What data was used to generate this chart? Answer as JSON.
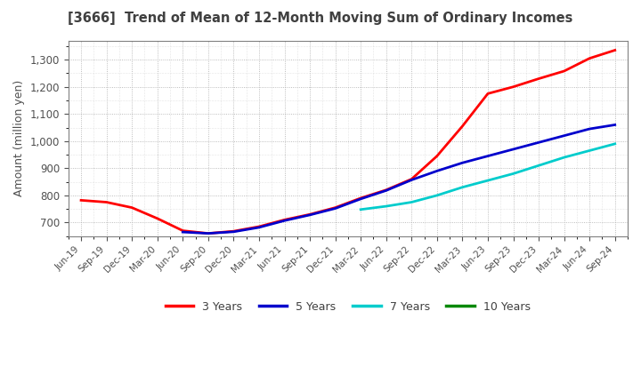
{
  "title": "[3666]  Trend of Mean of 12-Month Moving Sum of Ordinary Incomes",
  "ylabel": "Amount (million yen)",
  "ylim": [
    650,
    1370
  ],
  "yticks": [
    700,
    800,
    900,
    1000,
    1100,
    1200,
    1300
  ],
  "background_color": "#ffffff",
  "grid_color": "#aaaaaa",
  "title_color": "#404040",
  "x_labels": [
    "Jun-19",
    "Sep-19",
    "Dec-19",
    "Mar-20",
    "Jun-20",
    "Sep-20",
    "Dec-20",
    "Mar-21",
    "Jun-21",
    "Sep-21",
    "Dec-21",
    "Mar-22",
    "Jun-22",
    "Sep-22",
    "Dec-22",
    "Mar-23",
    "Jun-23",
    "Sep-23",
    "Dec-23",
    "Mar-24",
    "Jun-24",
    "Sep-24"
  ],
  "series": {
    "3 Years": {
      "color": "#ff0000",
      "values": [
        782,
        775,
        755,
        715,
        670,
        660,
        668,
        685,
        710,
        730,
        755,
        790,
        820,
        860,
        945,
        1055,
        1175,
        1200,
        1230,
        1258,
        1305,
        1335
      ]
    },
    "5 Years": {
      "color": "#0000cc",
      "values": [
        null,
        null,
        null,
        null,
        665,
        660,
        666,
        682,
        707,
        728,
        752,
        787,
        818,
        857,
        890,
        920,
        945,
        970,
        995,
        1020,
        1045,
        1060
      ]
    },
    "7 Years": {
      "color": "#00cccc",
      "values": [
        null,
        null,
        null,
        null,
        null,
        null,
        null,
        null,
        null,
        null,
        null,
        748,
        760,
        775,
        800,
        830,
        855,
        880,
        910,
        940,
        965,
        990
      ]
    },
    "10 Years": {
      "color": "#008800",
      "values": [
        null,
        null,
        null,
        null,
        null,
        null,
        null,
        null,
        null,
        null,
        null,
        null,
        null,
        null,
        null,
        null,
        null,
        null,
        null,
        null,
        null,
        null
      ]
    }
  },
  "legend_labels": [
    "3 Years",
    "5 Years",
    "7 Years",
    "10 Years"
  ],
  "legend_colors": [
    "#ff0000",
    "#0000cc",
    "#00cccc",
    "#008800"
  ]
}
